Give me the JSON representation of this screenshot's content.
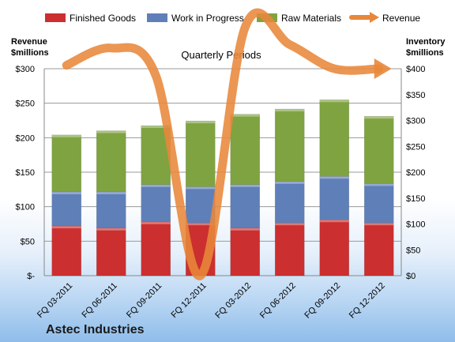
{
  "company": "Astec Industries",
  "chart_data": {
    "type": "bar",
    "stacked": true,
    "title": "Quarterly Periods",
    "categories": [
      "FQ 03-2011",
      "FQ 06-2011",
      "FQ 09-2011",
      "FQ 12-2011",
      "FQ 03-2012",
      "FQ 06-2012",
      "FQ 09-2012",
      "FQ 12-2012"
    ],
    "series": [
      {
        "name": "Finished Goods",
        "axis": "right",
        "color": "#cc2f2f",
        "values": [
          96,
          92,
          104,
          102,
          92,
          102,
          108,
          102
        ]
      },
      {
        "name": "Work in Progress",
        "axis": "right",
        "color": "#5f7fb8",
        "values": [
          66,
          70,
          72,
          70,
          84,
          80,
          84,
          76
        ]
      },
      {
        "name": "Raw Materials",
        "axis": "right",
        "color": "#7fa340",
        "values": [
          110,
          118,
          114,
          127,
          136,
          140,
          148,
          130
        ]
      },
      {
        "name": "Revenue",
        "axis": "left",
        "type": "line",
        "color": "#e8873a",
        "values": [
          305,
          330,
          290,
          0,
          360,
          335,
          300,
          300
        ]
      }
    ],
    "left_axis": {
      "title_line1": "Revenue",
      "title_line2": "$millions",
      "ticks": [
        "$-",
        "$50",
        "$100",
        "$150",
        "$200",
        "$250",
        "$300"
      ],
      "range": [
        0,
        300
      ]
    },
    "right_axis": {
      "title_line1": "Inventory",
      "title_line2": "$millions",
      "ticks": [
        "$0",
        "$50",
        "$100",
        "$150",
        "$200",
        "$250",
        "$300",
        "$350",
        "$400"
      ],
      "range": [
        0,
        400
      ]
    },
    "grid": true,
    "legend": "top"
  }
}
